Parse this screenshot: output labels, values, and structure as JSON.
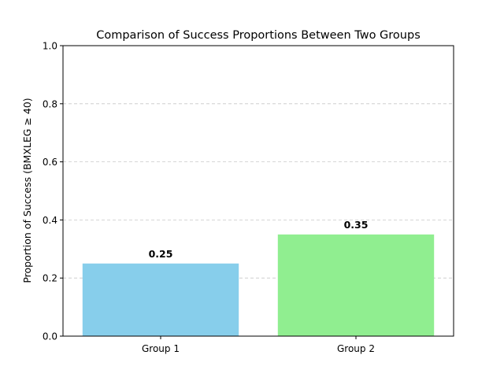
{
  "chart_data": {
    "type": "bar",
    "title": "Comparison of Success Proportions Between Two Groups",
    "xlabel": "",
    "ylabel": "Proportion of Success (BMXLEG ≥ 40)",
    "categories": [
      "Group 1",
      "Group 2"
    ],
    "values": [
      0.25,
      0.35
    ],
    "value_labels": [
      "0.25",
      "0.35"
    ],
    "colors": [
      "#87ceeb",
      "#90ee90"
    ],
    "ylim": [
      0,
      1.0
    ],
    "yticks": [
      0.0,
      0.2,
      0.4,
      0.6,
      0.8,
      1.0
    ],
    "ytick_labels": [
      "0.0",
      "0.2",
      "0.4",
      "0.6",
      "0.8",
      "1.0"
    ],
    "grid": {
      "axis": "y",
      "style": "dashed",
      "color": "#c8c8c8"
    }
  }
}
